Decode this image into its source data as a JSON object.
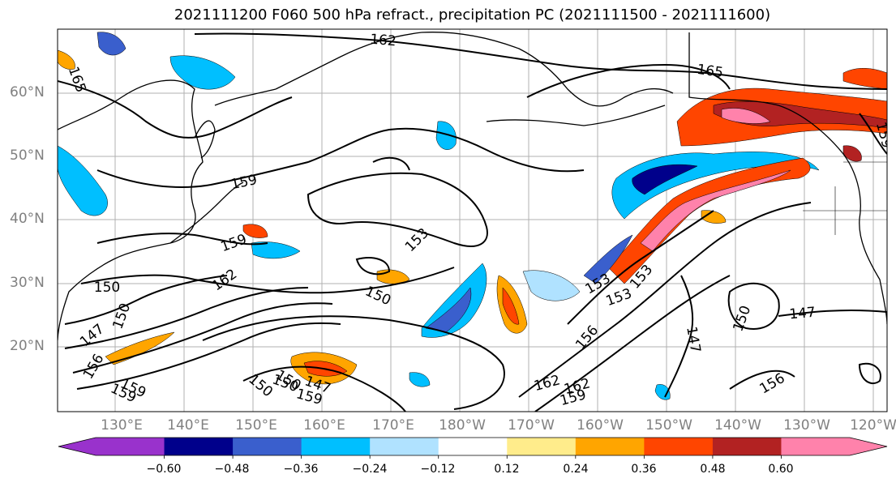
{
  "title": "2021111200 F060 500 hPa refract., precipitation PC (2021111500 - 2021111600)",
  "lat_labels": [
    "60°N",
    "50°N",
    "40°N",
    "30°N",
    "20°N"
  ],
  "lon_labels": [
    "130°E",
    "140°E",
    "150°E",
    "160°E",
    "170°E",
    "180°W",
    "170°W",
    "160°W",
    "150°W",
    "140°W",
    "130°W",
    "120°W"
  ],
  "colorbar": {
    "ticks": [
      "−0.60",
      "−0.48",
      "−0.36",
      "−0.24",
      "−0.12",
      "0.12",
      "0.24",
      "0.36",
      "0.48",
      "0.60"
    ],
    "colors": [
      "#9932cc",
      "#00008b",
      "#3a5fcd",
      "#00bfff",
      "#b0e2ff",
      "#ffffff",
      "#ffec8b",
      "#ffa500",
      "#ff4500",
      "#b22222",
      "#ff82ab"
    ]
  },
  "contour_labels": [
    "162",
    "165",
    "165",
    "159",
    "159",
    "159",
    "159",
    "153",
    "150",
    "150",
    "150",
    "147",
    "147",
    "150",
    "153",
    "153",
    "150",
    "147",
    "156",
    "156",
    "159",
    "162",
    "162",
    "159",
    "150",
    "150",
    "159",
    "162",
    "156",
    "153",
    "147"
  ]
}
